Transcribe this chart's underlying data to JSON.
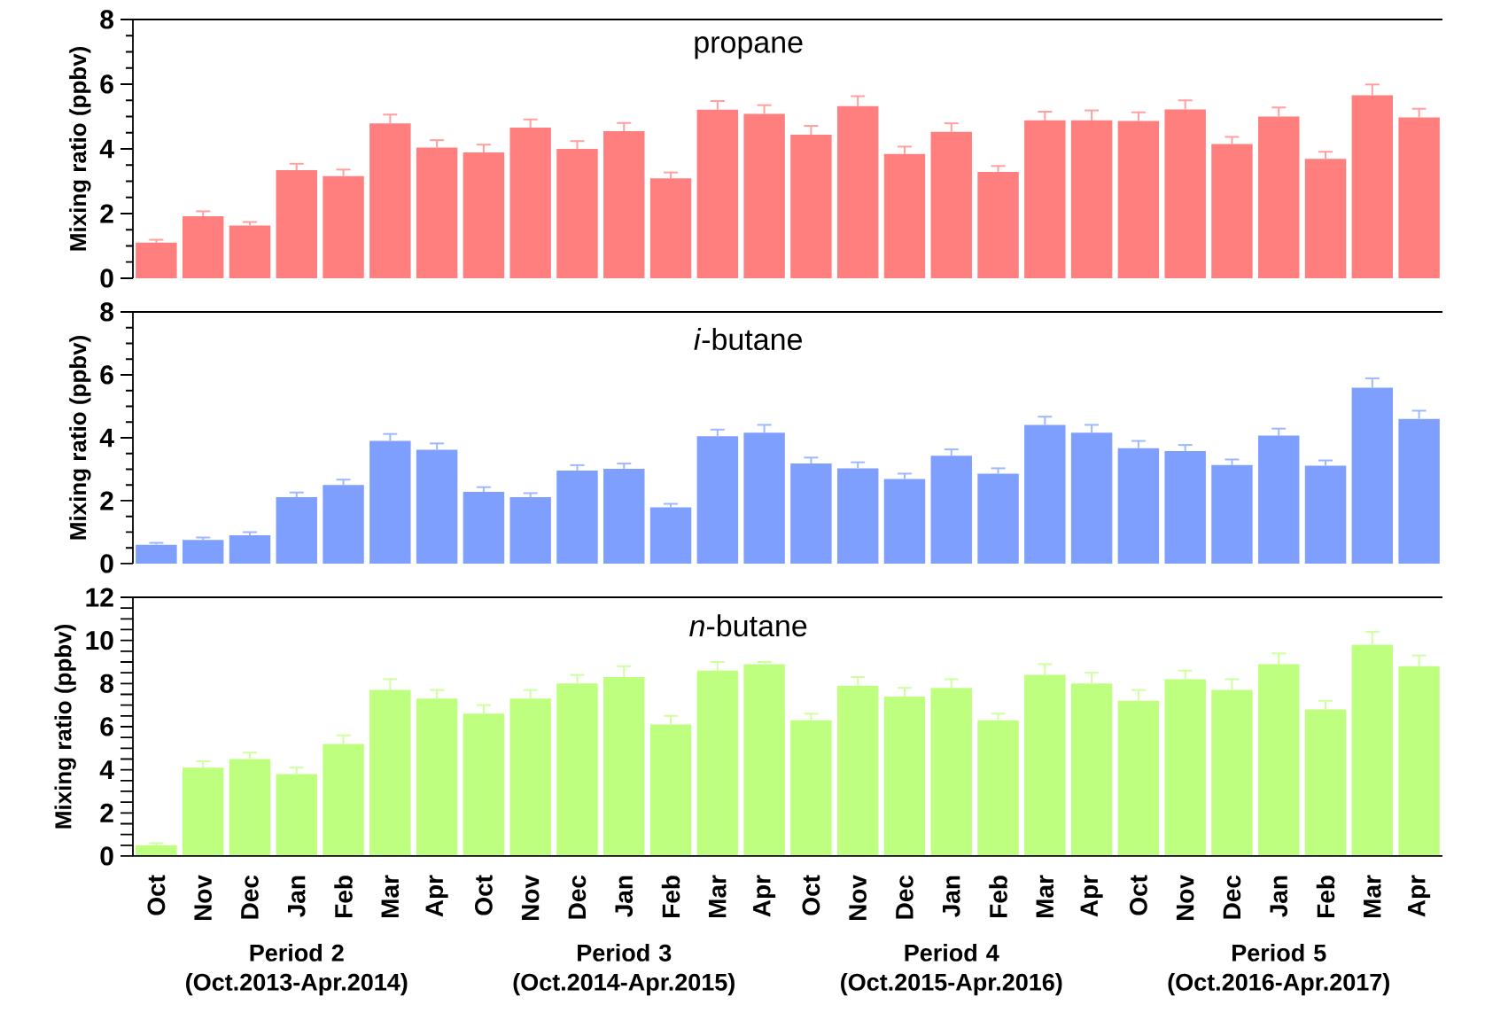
{
  "chart_data": [
    {
      "type": "bar",
      "title": "propane",
      "ylabel": "Mixing ratio (ppbv)",
      "categories": [
        null,
        null,
        null,
        null,
        null,
        null,
        null,
        null,
        null,
        null,
        null,
        null,
        null,
        null,
        null,
        null,
        null,
        null,
        null,
        null,
        null,
        null,
        null,
        null,
        null,
        null,
        null,
        null
      ],
      "values": [
        1.1,
        1.92,
        1.63,
        3.34,
        3.16,
        4.79,
        4.04,
        3.89,
        4.66,
        4.0,
        4.55,
        3.09,
        5.21,
        5.08,
        4.44,
        5.32,
        3.84,
        4.53,
        3.29,
        4.88,
        4.88,
        4.86,
        5.22,
        4.15,
        5.0,
        3.69,
        5.66,
        4.97
      ],
      "errors": [
        [
          1.1,
          1.19
        ],
        [
          1.92,
          2.07
        ],
        [
          1.63,
          1.74
        ],
        [
          3.34,
          3.54
        ],
        [
          3.16,
          3.36
        ],
        [
          4.79,
          5.06
        ],
        [
          4.04,
          4.27
        ],
        [
          3.89,
          4.13
        ],
        [
          4.66,
          4.91
        ],
        [
          4.0,
          4.24
        ],
        [
          4.55,
          4.8
        ],
        [
          3.09,
          3.27
        ],
        [
          5.21,
          5.48
        ],
        [
          5.08,
          5.35
        ],
        [
          4.44,
          4.71
        ],
        [
          5.32,
          5.63
        ],
        [
          3.84,
          4.07
        ],
        [
          4.53,
          4.79
        ],
        [
          3.29,
          3.47
        ],
        [
          4.88,
          5.15
        ],
        [
          4.88,
          5.19
        ],
        [
          4.86,
          5.13
        ],
        [
          5.22,
          5.5
        ],
        [
          4.15,
          4.37
        ],
        [
          5.0,
          5.28
        ],
        [
          3.69,
          3.91
        ],
        [
          5.66,
          5.99
        ],
        [
          4.97,
          5.24
        ]
      ],
      "color": "#ff7f7f",
      "ylim": [
        0,
        8
      ],
      "yticks": [
        0,
        2,
        4,
        6,
        8
      ],
      "tick_labels": "y"
    },
    {
      "type": "bar",
      "title": "*i*-butane",
      "ylabel": "Mixing ratio (ppbv)",
      "categories": [
        null,
        null,
        null,
        null,
        null,
        null,
        null,
        null,
        null,
        null,
        null,
        null,
        null,
        null,
        null,
        null,
        null,
        null,
        null,
        null,
        null,
        null,
        null,
        null,
        null,
        null,
        null,
        null
      ],
      "values": [
        0.6,
        0.75,
        0.9,
        2.11,
        2.5,
        3.9,
        3.62,
        2.28,
        2.11,
        2.96,
        3.01,
        1.79,
        4.05,
        4.16,
        3.18,
        3.03,
        2.69,
        3.43,
        2.86,
        4.41,
        4.16,
        3.67,
        3.58,
        3.13,
        4.07,
        3.11,
        5.59,
        4.6
      ],
      "errors": [
        [
          0.6,
          0.66
        ],
        [
          0.75,
          0.83
        ],
        [
          0.9,
          1.0
        ],
        [
          2.11,
          2.26
        ],
        [
          2.5,
          2.67
        ],
        [
          3.9,
          4.12
        ],
        [
          3.62,
          3.82
        ],
        [
          2.28,
          2.43
        ],
        [
          2.11,
          2.24
        ],
        [
          2.96,
          3.13
        ],
        [
          3.01,
          3.18
        ],
        [
          1.79,
          1.9
        ],
        [
          4.05,
          4.26
        ],
        [
          4.16,
          4.41
        ],
        [
          3.18,
          3.37
        ],
        [
          3.03,
          3.22
        ],
        [
          2.69,
          2.86
        ],
        [
          3.43,
          3.63
        ],
        [
          2.86,
          3.03
        ],
        [
          4.41,
          4.67
        ],
        [
          4.16,
          4.41
        ],
        [
          3.67,
          3.9
        ],
        [
          3.58,
          3.77
        ],
        [
          3.13,
          3.31
        ],
        [
          4.07,
          4.29
        ],
        [
          3.11,
          3.28
        ],
        [
          5.59,
          5.89
        ],
        [
          4.6,
          4.86
        ]
      ],
      "color": "#7f9fff",
      "ylim": [
        0,
        8
      ],
      "yticks": [
        0,
        2,
        4,
        6,
        8
      ],
      "tick_labels": "y"
    },
    {
      "type": "bar",
      "title": "*n*-butane",
      "ylabel": "Mixing ratio (ppbv)",
      "categories": [
        "Oct",
        "Nov",
        "Dec",
        "Jan",
        "Feb",
        "Mar",
        "Apr",
        "Oct",
        "Nov",
        "Dec",
        "Jan",
        "Feb",
        "Mar",
        "Apr",
        "Oct",
        "Nov",
        "Dec",
        "Jan",
        "Feb",
        "Mar",
        "Apr",
        "Oct",
        "Nov",
        "Dec",
        "Jan",
        "Feb",
        "Mar",
        "Apr"
      ],
      "values": [
        0.5,
        4.1,
        4.5,
        3.8,
        5.2,
        7.7,
        7.3,
        6.6,
        7.3,
        8.0,
        8.3,
        6.1,
        8.6,
        8.9,
        6.3,
        7.9,
        7.4,
        7.8,
        6.3,
        8.4,
        8.0,
        7.2,
        8.2,
        7.7,
        8.9,
        6.8,
        9.8,
        8.8
      ],
      "errors": [
        [
          0.5,
          0.6
        ],
        [
          4.1,
          4.4
        ],
        [
          4.5,
          4.8
        ],
        [
          3.8,
          4.1
        ],
        [
          5.2,
          5.6
        ],
        [
          7.7,
          8.2
        ],
        [
          7.3,
          7.7
        ],
        [
          6.6,
          7.0
        ],
        [
          7.3,
          7.7
        ],
        [
          8.0,
          8.4
        ],
        [
          8.3,
          8.8
        ],
        [
          6.1,
          6.5
        ],
        [
          8.6,
          9.0
        ],
        [
          8.9,
          9.0
        ],
        [
          6.3,
          6.6
        ],
        [
          7.9,
          8.3
        ],
        [
          7.4,
          7.8
        ],
        [
          7.8,
          8.2
        ],
        [
          6.3,
          6.6
        ],
        [
          8.4,
          8.9
        ],
        [
          8.0,
          8.5
        ],
        [
          7.2,
          7.7
        ],
        [
          8.2,
          8.6
        ],
        [
          7.7,
          8.2
        ],
        [
          8.9,
          9.4
        ],
        [
          6.8,
          7.2
        ],
        [
          9.8,
          10.4
        ],
        [
          8.8,
          9.3
        ]
      ],
      "color": "#bfff7f",
      "ylim": [
        0,
        12
      ],
      "yticks": [
        0,
        2,
        4,
        6,
        8,
        10,
        12
      ],
      "annotations": [
        "Period 2 (Oct.2013-Apr.2014)",
        "Period 3 (Oct.2014-Apr.2015)",
        "Period 4 (Oct.2015-Apr.2016)",
        "Period 5 (Oct.2016-Apr.2017)"
      ]
    }
  ]
}
